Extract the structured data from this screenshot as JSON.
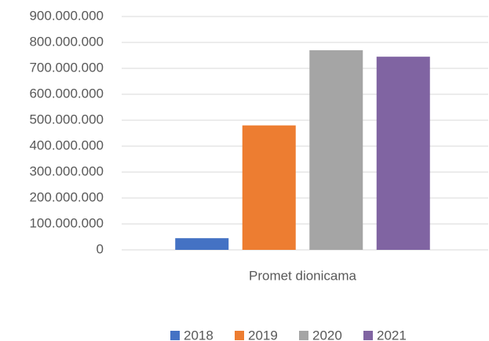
{
  "chart_data": {
    "type": "bar",
    "categories": [
      "Promet dionicama"
    ],
    "series": [
      {
        "name": "2018",
        "color": "#4472c4",
        "values": [
          45000000
        ]
      },
      {
        "name": "2019",
        "color": "#ed7d31",
        "values": [
          480000000
        ]
      },
      {
        "name": "2020",
        "color": "#a5a5a5",
        "values": [
          770000000
        ]
      },
      {
        "name": "2021",
        "color": "#8064a2",
        "values": [
          745000000
        ]
      }
    ],
    "ylim": [
      0,
      900000000
    ],
    "yticks": [
      0,
      {
        "value": 100000000,
        "label": "100.000.000"
      },
      {
        "value": 200000000,
        "label": "200.000.000"
      },
      {
        "value": 300000000,
        "label": "300.000.000"
      },
      {
        "value": 400000000,
        "label": "400.000.000"
      },
      {
        "value": 500000000,
        "label": "500.000.000"
      },
      {
        "value": 600000000,
        "label": "600.000.000"
      },
      {
        "value": 700000000,
        "label": "700.000.000"
      },
      {
        "value": 800000000,
        "label": "800.000.000"
      },
      {
        "value": 900000000,
        "label": "900.000.000"
      }
    ],
    "grid": true,
    "legend": "bottom"
  }
}
